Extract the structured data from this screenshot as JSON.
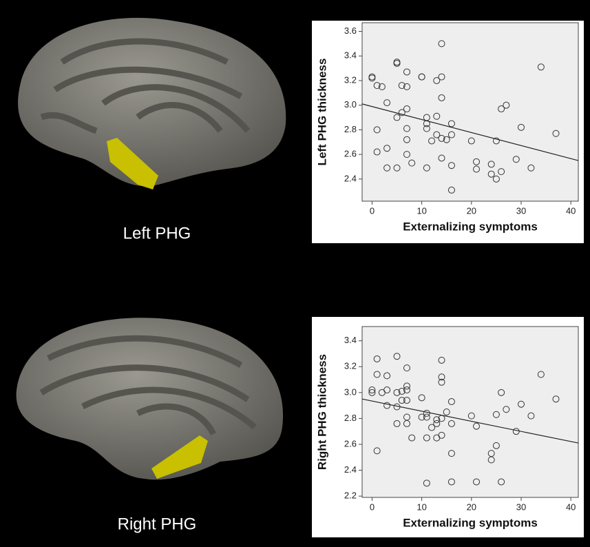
{
  "images": [
    {
      "label": "Left PHG"
    },
    {
      "label": "Right PHG"
    }
  ],
  "chart_data": [
    {
      "type": "scatter",
      "x_label": "Externalizing symptoms",
      "y_label": "Left PHG thickness",
      "x": [
        0,
        0,
        1,
        2,
        3,
        1,
        3,
        1,
        3,
        5,
        5,
        7,
        6,
        7,
        5,
        6,
        7,
        7,
        7,
        7,
        8,
        5,
        10,
        10,
        13,
        14,
        14,
        14,
        11,
        11,
        11,
        13,
        13,
        12,
        14,
        15,
        16,
        16,
        14,
        11,
        16,
        16,
        20,
        21,
        21,
        24,
        24,
        25,
        25,
        26,
        26,
        27,
        29,
        30,
        32,
        34,
        37
      ],
      "values": [
        3.23,
        3.22,
        3.16,
        3.15,
        3.02,
        2.8,
        2.65,
        2.62,
        2.49,
        3.35,
        3.34,
        3.27,
        3.16,
        3.15,
        2.9,
        2.94,
        2.97,
        2.81,
        2.72,
        2.6,
        2.53,
        2.49,
        3.23,
        3.23,
        3.2,
        3.23,
        3.5,
        3.06,
        2.9,
        2.85,
        2.81,
        2.91,
        2.76,
        2.71,
        2.73,
        2.72,
        2.85,
        2.76,
        2.57,
        2.49,
        2.51,
        2.31,
        2.71,
        2.54,
        2.48,
        2.52,
        2.44,
        2.71,
        2.4,
        2.46,
        2.97,
        3.0,
        2.56,
        2.82,
        2.49,
        3.31,
        2.77
      ],
      "color": "#333333",
      "trend_line": {
        "x": [
          -2,
          41.5
        ],
        "y": [
          3.01,
          2.55
        ]
      },
      "xlim": [
        -2,
        41.5
      ],
      "xticks": [
        0,
        10,
        20,
        30,
        40
      ],
      "ylim": [
        2.22,
        3.67
      ],
      "yticks": [
        {
          "value": 2.4,
          "label": "2.4"
        },
        {
          "value": 2.6,
          "label": "2.6"
        },
        {
          "value": 2.8,
          "label": "2.8"
        },
        {
          "value": 3,
          "label": "3.0"
        },
        {
          "value": 3.2,
          "label": "3.2"
        },
        {
          "value": 3.4,
          "label": "3.4"
        },
        {
          "value": 3.6,
          "label": "3.6"
        }
      ]
    },
    {
      "type": "scatter",
      "x_label": "Externalizing symptoms",
      "y_label": "Right PHG thickness",
      "x": [
        0,
        0,
        1,
        1,
        1,
        2,
        3,
        3,
        3,
        5,
        5,
        5,
        5,
        6,
        6,
        7,
        7,
        7,
        7,
        7,
        7,
        8,
        10,
        10,
        11,
        11,
        11,
        11,
        12,
        13,
        13,
        13,
        14,
        14,
        14,
        14,
        14,
        15,
        16,
        16,
        16,
        16,
        20,
        21,
        21,
        24,
        24,
        25,
        25,
        26,
        26,
        27,
        29,
        30,
        32,
        34,
        37
      ],
      "values": [
        3.02,
        3.0,
        3.26,
        3.14,
        2.55,
        3.0,
        3.13,
        3.02,
        2.9,
        3.28,
        3.0,
        2.89,
        2.76,
        3.01,
        2.94,
        3.19,
        3.05,
        3.02,
        2.94,
        2.81,
        2.76,
        2.65,
        2.96,
        2.81,
        2.84,
        2.81,
        2.65,
        2.3,
        2.73,
        2.79,
        2.76,
        2.65,
        3.25,
        3.12,
        3.08,
        2.8,
        2.67,
        2.85,
        2.93,
        2.76,
        2.53,
        2.31,
        2.82,
        2.74,
        2.31,
        2.53,
        2.48,
        2.59,
        2.83,
        3.0,
        2.31,
        2.87,
        2.7,
        2.91,
        2.82,
        3.14,
        2.95
      ],
      "color": "#333333",
      "trend_line": {
        "x": [
          -2,
          41.5
        ],
        "y": [
          2.95,
          2.61
        ]
      },
      "xlim": [
        -2,
        41.5
      ],
      "xticks": [
        0,
        10,
        20,
        30,
        40
      ],
      "ylim": [
        2.19,
        3.51
      ],
      "yticks": [
        {
          "value": 2.2,
          "label": "2.2"
        },
        {
          "value": 2.4,
          "label": "2.4"
        },
        {
          "value": 2.6,
          "label": "2.6"
        },
        {
          "value": 2.8,
          "label": "2.8"
        },
        {
          "value": 3,
          "label": "3.0"
        },
        {
          "value": 3.2,
          "label": "3.2"
        },
        {
          "value": 3.4,
          "label": "3.4"
        }
      ]
    }
  ]
}
